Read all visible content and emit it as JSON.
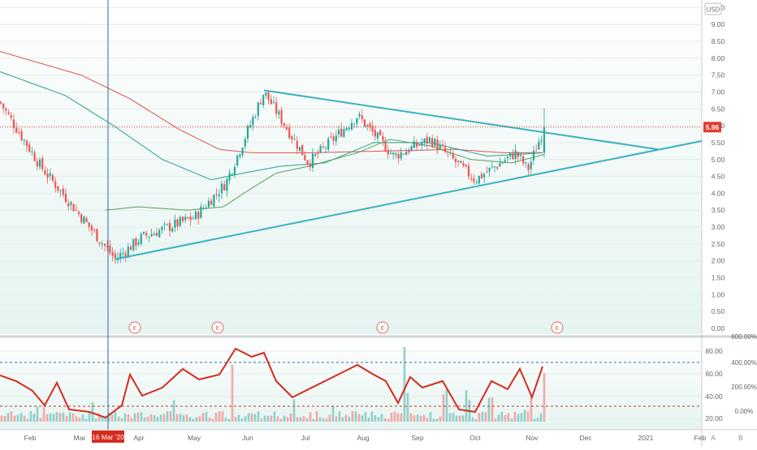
{
  "currency_label": "USD",
  "colors": {
    "bullish": "#26a69a",
    "bearish": "#ef5350",
    "trendline": "#3cb1c0",
    "ma_red": "#d9534f",
    "ma_teal": "#2b9e8c",
    "ma_green": "#5a9e5a",
    "rsi": "#d62a1e",
    "crosshair": "#2a6aa8",
    "price_badge": "#e03c31",
    "date_badge": "#d62a1e"
  },
  "price_badge": "5.96",
  "crosshair_date": "16 Mar '20",
  "earnings_marker_label": "E",
  "bottom_buttons": {
    "log": "A",
    "auto": "B"
  },
  "chart_data": {
    "type": "candlestick",
    "price_axis": {
      "ticks": [
        "9.50",
        "9.00",
        "8.50",
        "8.00",
        "7.50",
        "7.00",
        "6.50",
        "6.00",
        "5.50",
        "5.00",
        "4.50",
        "4.00",
        "3.50",
        "3.00",
        "2.50",
        "2.00",
        "1.50",
        "1.00",
        "0.50",
        "0.00"
      ],
      "range": [
        -0.3,
        9.7
      ]
    },
    "time_axis": {
      "ticks": [
        "Feb",
        "Mar",
        "Apr",
        "May",
        "Jun",
        "Jul",
        "Aug",
        "Sep",
        "Oct",
        "Nov",
        "Dec",
        "2021",
        "Feb"
      ]
    },
    "last_price": 5.96,
    "ohlc_close_path": [
      {
        "date": "Jan '20",
        "close": 6.7
      },
      {
        "date": "Feb '20",
        "close": 4.8
      },
      {
        "date": "16 Mar '20",
        "close": 2.05
      },
      {
        "date": "Apr '20",
        "close": 2.7
      },
      {
        "date": "May '20",
        "close": 3.3
      },
      {
        "date": "late May '20",
        "close": 4.3
      },
      {
        "date": "early Jun '20",
        "close": 7.0
      },
      {
        "date": "Jul '20",
        "close": 4.9
      },
      {
        "date": "Aug '20",
        "close": 6.3
      },
      {
        "date": "late Aug '20",
        "close": 5.1
      },
      {
        "date": "Sep '20",
        "close": 5.6
      },
      {
        "date": "Oct '20",
        "close": 4.4
      },
      {
        "date": "late Oct '20",
        "close": 5.2
      },
      {
        "date": "early Nov '20",
        "close": 4.7
      },
      {
        "date": "Nov '20",
        "close": 5.96
      }
    ],
    "trendlines": [
      {
        "name": "upper",
        "from": {
          "date": "early Jun '20",
          "price": 7.05
        },
        "to": {
          "date": "late Dec '20",
          "price": 5.3
        }
      },
      {
        "name": "lower",
        "from": {
          "date": "16 Mar '20",
          "price": 2.05
        },
        "to": {
          "date": "mid Feb '21",
          "price": 5.55
        }
      }
    ],
    "moving_averages_visible": 3,
    "earnings_events": [
      "Mar '20",
      "May '20",
      "Aug '20",
      "Nov '20"
    ],
    "lower_pane": {
      "rsi_axis_ticks": [
        "80.00",
        "60.00",
        "40.00",
        "20.00"
      ],
      "volume_axis_ticks": [
        "600.00%",
        "400.00%",
        "200.00%",
        "0.00%"
      ],
      "rsi_levels": [
        70,
        30
      ]
    }
  }
}
